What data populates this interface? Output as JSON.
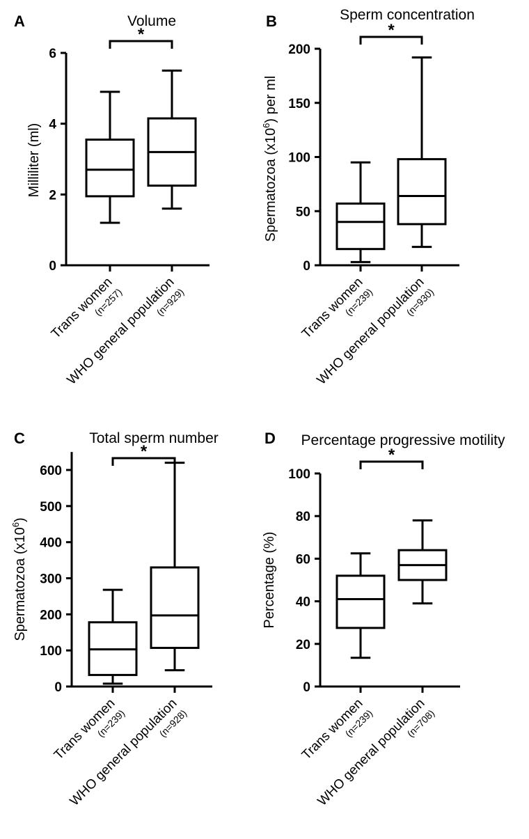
{
  "chart_data": [
    {
      "panel": "A",
      "type": "box",
      "title": "Volume",
      "ylabel": "Milliliter (ml)",
      "ylim": [
        0,
        6
      ],
      "yticks": [
        0,
        2,
        4,
        6
      ],
      "significance": "*",
      "groups": [
        {
          "name": "Trans women",
          "n_label": "(n=257)",
          "min": 1.2,
          "q1": 1.95,
          "median": 2.7,
          "q3": 3.55,
          "max": 4.9
        },
        {
          "name": "WHO general population",
          "n_label": "(n=929)",
          "min": 1.6,
          "q1": 2.25,
          "median": 3.2,
          "q3": 4.15,
          "max": 5.5
        }
      ]
    },
    {
      "panel": "B",
      "type": "box",
      "title": "Sperm concentration",
      "ylabel": "Spermatozoa (x10",
      "ylabel_sup": "6",
      "ylabel_suffix": ") per ml",
      "ylim": [
        0,
        200
      ],
      "yticks": [
        0,
        50,
        100,
        150,
        200
      ],
      "significance": "*",
      "groups": [
        {
          "name": "Trans women",
          "n_label": "(n=239)",
          "min": 3,
          "q1": 15,
          "median": 40,
          "q3": 57,
          "max": 95
        },
        {
          "name": "WHO general population",
          "n_label": "(n=930)",
          "min": 17,
          "q1": 38,
          "median": 64,
          "q3": 98,
          "max": 192
        }
      ]
    },
    {
      "panel": "C",
      "type": "box",
      "title": "Total sperm number",
      "ylabel": "Spermatozoa (x10",
      "ylabel_sup": "6",
      "ylabel_suffix": ")",
      "ylim": [
        0,
        650
      ],
      "yticks": [
        0,
        100,
        200,
        300,
        400,
        500,
        600
      ],
      "significance": "*",
      "groups": [
        {
          "name": "Trans women",
          "n_label": "(n=239)",
          "min": 8,
          "q1": 32,
          "median": 103,
          "q3": 178,
          "max": 268
        },
        {
          "name": "WHO general population",
          "n_label": "(n=928)",
          "min": 45,
          "q1": 107,
          "median": 197,
          "q3": 330,
          "max": 620
        }
      ]
    },
    {
      "panel": "D",
      "type": "box",
      "title": "Percentage progressive motility",
      "ylabel": "Percentage (%)",
      "ylim": [
        0,
        100
      ],
      "yticks": [
        0,
        20,
        40,
        60,
        80,
        100
      ],
      "significance": "*",
      "groups": [
        {
          "name": "Trans women",
          "n_label": "(n=239)",
          "min": 13.5,
          "q1": 27.5,
          "median": 41,
          "q3": 52,
          "max": 62.5
        },
        {
          "name": "WHO general population",
          "n_label": "(n=708)",
          "min": 39,
          "q1": 50,
          "median": 57,
          "q3": 64,
          "max": 78
        }
      ]
    }
  ]
}
